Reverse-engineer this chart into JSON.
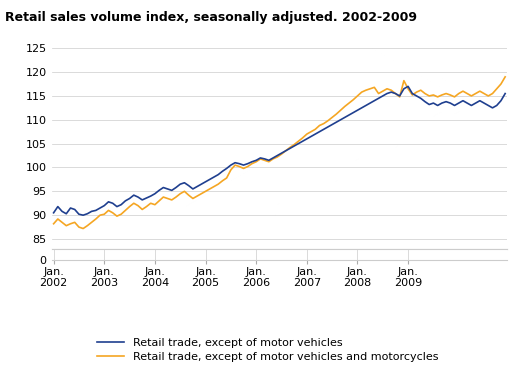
{
  "title": "Retail sales volume index, seasonally adjusted. 2002-2009",
  "bg_color": "#ffffff",
  "grid_color": "#cccccc",
  "line1_color": "#1f3f8f",
  "line2_color": "#f5a623",
  "legend1": "Retail trade, except of motor vehicles",
  "legend2": "Retail trade, except of motor vehicles and motorcycles",
  "xtick_labels": [
    "Jan.\n2002",
    "Jan.\n2003",
    "Jan.\n2004",
    "Jan.\n2005",
    "Jan.\n2006",
    "Jan.\n2007",
    "Jan.\n2008",
    "Jan.\n2009"
  ],
  "yticks_upper": [
    85,
    90,
    95,
    100,
    105,
    110,
    115,
    120,
    125
  ],
  "ytick_zero": 0,
  "upper_ylim": [
    83,
    125
  ],
  "series1": [
    90.5,
    91.8,
    90.8,
    90.3,
    91.5,
    91.2,
    90.2,
    90.0,
    90.3,
    90.8,
    91.0,
    91.5,
    92.0,
    92.8,
    92.5,
    91.8,
    92.2,
    93.0,
    93.5,
    94.2,
    93.8,
    93.2,
    93.6,
    94.0,
    94.5,
    95.2,
    95.8,
    95.5,
    95.2,
    95.8,
    96.5,
    96.8,
    96.2,
    95.5,
    96.0,
    96.5,
    97.0,
    97.5,
    98.0,
    98.5,
    99.2,
    99.8,
    100.5,
    101.0,
    100.8,
    100.5,
    100.8,
    101.2,
    101.5,
    102.0,
    101.8,
    101.5,
    102.0,
    102.5,
    103.0,
    103.5,
    104.0,
    104.5,
    105.0,
    105.5,
    106.0,
    106.5,
    107.0,
    107.5,
    108.0,
    108.5,
    109.0,
    109.5,
    110.0,
    110.5,
    111.0,
    111.5,
    112.0,
    112.5,
    113.0,
    113.5,
    114.0,
    114.5,
    115.0,
    115.5,
    115.8,
    115.5,
    115.0,
    116.5,
    117.0,
    115.5,
    115.0,
    114.5,
    113.8,
    113.2,
    113.5,
    113.0,
    113.5,
    113.8,
    113.5,
    113.0,
    113.5,
    114.0,
    113.5,
    113.0,
    113.5,
    114.0,
    113.5,
    113.0,
    112.5,
    113.0,
    114.0,
    115.5
  ],
  "series2": [
    88.2,
    89.2,
    88.5,
    87.8,
    88.2,
    88.5,
    87.5,
    87.2,
    87.8,
    88.5,
    89.2,
    90.0,
    90.2,
    91.0,
    90.5,
    89.8,
    90.2,
    91.0,
    91.8,
    92.5,
    92.0,
    91.2,
    91.8,
    92.5,
    92.2,
    93.0,
    93.8,
    93.5,
    93.2,
    93.8,
    94.5,
    95.0,
    94.2,
    93.5,
    94.0,
    94.5,
    95.0,
    95.5,
    96.0,
    96.5,
    97.2,
    97.8,
    99.5,
    100.5,
    100.2,
    99.8,
    100.2,
    100.8,
    101.2,
    101.8,
    101.5,
    101.2,
    101.8,
    102.2,
    102.8,
    103.5,
    104.2,
    104.8,
    105.5,
    106.2,
    107.0,
    107.5,
    108.0,
    108.8,
    109.2,
    109.8,
    110.5,
    111.2,
    112.0,
    112.8,
    113.5,
    114.2,
    115.0,
    115.8,
    116.2,
    116.5,
    116.8,
    115.5,
    116.0,
    116.5,
    116.2,
    115.5,
    114.8,
    118.2,
    116.5,
    115.2,
    115.8,
    116.2,
    115.5,
    115.0,
    115.2,
    114.8,
    115.2,
    115.5,
    115.2,
    114.8,
    115.5,
    116.0,
    115.5,
    115.0,
    115.5,
    116.0,
    115.5,
    115.0,
    115.5,
    116.5,
    117.5,
    119.0
  ]
}
